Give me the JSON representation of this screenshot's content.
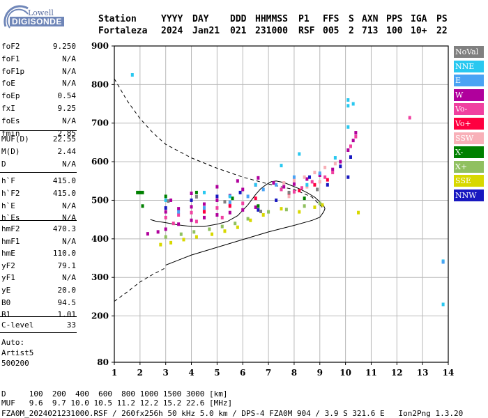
{
  "logo": {
    "line1": "Lowell",
    "line2": "DIGISONDE"
  },
  "header": {
    "row1": [
      "Station",
      "YYYY",
      "DAY",
      "DDD",
      "HHMMSS",
      "P1",
      "FFS",
      "S",
      "AXN",
      "PPS",
      "IGA",
      "PS"
    ],
    "row2": [
      "Fortaleza",
      "2024",
      "Jan21",
      "021",
      "231000",
      "RSF",
      "005",
      "2",
      "713",
      "100",
      "10+",
      "22"
    ]
  },
  "params": {
    "group1": [
      {
        "name": "foF2",
        "value": "9.250"
      },
      {
        "name": "foF1",
        "value": "N/A"
      },
      {
        "name": "foF1p",
        "value": "N/A"
      },
      {
        "name": "foE",
        "value": "N/A"
      },
      {
        "name": "foEp",
        "value": "0.54"
      },
      {
        "name": "fxI",
        "value": "9.25"
      },
      {
        "name": "foEs",
        "value": "N/A"
      },
      {
        "name": "fmin",
        "value": "2.85"
      }
    ],
    "group2": [
      {
        "name": "MUF(D)",
        "value": "22.55"
      },
      {
        "name": "M(D)",
        "value": "2.44"
      },
      {
        "name": "D",
        "value": "N/A"
      }
    ],
    "group3": [
      {
        "name": "h`F",
        "value": "415.0"
      },
      {
        "name": "h`F2",
        "value": "415.0"
      },
      {
        "name": "h`E",
        "value": "N/A"
      },
      {
        "name": "h`Es",
        "value": "N/A"
      }
    ],
    "group4": [
      {
        "name": "hmF2",
        "value": "470.3"
      },
      {
        "name": "hmF1",
        "value": "N/A"
      },
      {
        "name": "hmE",
        "value": "110.0"
      },
      {
        "name": "yF2",
        "value": "79.1"
      },
      {
        "name": "yF1",
        "value": "N/A"
      },
      {
        "name": "yE",
        "value": "20.0"
      },
      {
        "name": "B0",
        "value": "94.5"
      },
      {
        "name": "B1",
        "value": "1.01"
      }
    ],
    "group5": [
      {
        "name": "C-level",
        "value": "33"
      }
    ]
  },
  "autoscale": {
    "line1": "Auto:",
    "line2": "Artist5",
    "line3": "500200"
  },
  "legend": [
    {
      "label": "NoVal",
      "color": "#808080"
    },
    {
      "label": "NNE",
      "color": "#29c8f0"
    },
    {
      "label": "E",
      "color": "#4aa3f4"
    },
    {
      "label": "W",
      "color": "#b0009c"
    },
    {
      "label": "Vo-",
      "color": "#f040a0"
    },
    {
      "label": "Vo+",
      "color": "#ff0040"
    },
    {
      "label": "SSW",
      "color": "#f8b0b8"
    },
    {
      "label": "X-",
      "color": "#008000"
    },
    {
      "label": "X+",
      "color": "#90c060"
    },
    {
      "label": "SSE",
      "color": "#d8d800"
    },
    {
      "label": "NNW",
      "color": "#1818c0"
    }
  ],
  "footer": {
    "d_label": "D",
    "d_values": [
      "100",
      "200",
      "400",
      "600",
      "800",
      "1000",
      "1500",
      "3000"
    ],
    "d_unit": "[km]",
    "muf_label": "MUF",
    "muf_values": [
      "9.6",
      "9.7",
      "10.0",
      "10.5",
      "11.2",
      "12.2",
      "15.2",
      "22.6"
    ],
    "muf_unit": "[MHz]",
    "info": "FZA0M_2024021231000.RSF / 260fx256h 50 kHz 5.0 km / DPS-4 FZA0M 904 / 3.9 S 321.6 E   Ion2Png 1.3.20"
  },
  "chart_data": {
    "type": "scatter",
    "xlim": [
      1,
      14
    ],
    "ylim": [
      80,
      900
    ],
    "x_ticks": [
      1,
      2,
      3,
      4,
      5,
      6,
      7,
      8,
      9,
      10,
      11,
      12,
      13,
      14
    ],
    "y_ticks": [
      80,
      200,
      300,
      400,
      500,
      600,
      700,
      800,
      900
    ],
    "grid": true,
    "series": [
      {
        "name": "W",
        "color": "#b0009c",
        "points": [
          [
            2.3,
            413
          ],
          [
            2.7,
            418
          ],
          [
            3.0,
            425
          ],
          [
            3.5,
            438
          ],
          [
            4.0,
            448
          ],
          [
            4.5,
            455
          ],
          [
            5.0,
            462
          ],
          [
            5.5,
            468
          ],
          [
            6.0,
            475
          ],
          [
            6.5,
            482
          ],
          [
            3.0,
            470
          ],
          [
            3.5,
            478
          ],
          [
            4.0,
            483
          ],
          [
            4.5,
            490
          ],
          [
            5.0,
            500
          ],
          [
            5.5,
            512
          ],
          [
            6.0,
            528
          ],
          [
            6.5,
            540
          ],
          [
            3.2,
            500
          ],
          [
            4.0,
            518
          ],
          [
            5.0,
            535
          ],
          [
            5.8,
            550
          ],
          [
            6.6,
            558
          ],
          [
            7.2,
            545
          ],
          [
            7.6,
            535
          ],
          [
            8.0,
            542
          ],
          [
            8.5,
            555
          ],
          [
            9.0,
            565
          ],
          [
            9.5,
            580
          ],
          [
            9.8,
            600
          ],
          [
            10.1,
            630
          ],
          [
            10.3,
            655
          ],
          [
            10.4,
            675
          ]
        ]
      },
      {
        "name": "Vo-",
        "color": "#f040a0",
        "points": [
          [
            3.0,
            455
          ],
          [
            3.5,
            462
          ],
          [
            4.0,
            468
          ],
          [
            4.5,
            472
          ],
          [
            5.0,
            480
          ],
          [
            5.5,
            488
          ],
          [
            6.0,
            492
          ],
          [
            3.3,
            440
          ],
          [
            4.2,
            445
          ],
          [
            5.2,
            455
          ],
          [
            7.5,
            528
          ],
          [
            8.0,
            522
          ],
          [
            8.3,
            532
          ],
          [
            8.7,
            548
          ],
          [
            9.2,
            560
          ],
          [
            9.5,
            572
          ],
          [
            10.2,
            640
          ],
          [
            10.4,
            665
          ],
          [
            12.5,
            714
          ]
        ]
      },
      {
        "name": "Vo+",
        "color": "#ff0040",
        "points": [
          [
            4.5,
            470
          ],
          [
            5.5,
            485
          ],
          [
            6.5,
            505
          ],
          [
            7.8,
            518
          ],
          [
            8.2,
            525
          ],
          [
            8.8,
            540
          ],
          [
            9.3,
            553
          ]
        ]
      },
      {
        "name": "SSW",
        "color": "#f8b0b8",
        "points": [
          [
            7.6,
            545
          ],
          [
            8.0,
            552
          ],
          [
            8.4,
            560
          ],
          [
            8.8,
            572
          ],
          [
            9.2,
            585
          ],
          [
            9.6,
            595
          ],
          [
            7.8,
            510
          ],
          [
            8.5,
            535
          ],
          [
            9.0,
            548
          ]
        ]
      },
      {
        "name": "SSE",
        "color": "#d8d800",
        "points": [
          [
            2.8,
            385
          ],
          [
            3.2,
            390
          ],
          [
            3.7,
            398
          ],
          [
            4.2,
            405
          ],
          [
            4.8,
            412
          ],
          [
            5.3,
            420
          ],
          [
            5.8,
            430
          ],
          [
            6.3,
            448
          ],
          [
            6.8,
            462
          ],
          [
            7.5,
            478
          ],
          [
            8.2,
            470
          ],
          [
            8.8,
            482
          ],
          [
            9.1,
            488
          ],
          [
            10.5,
            468
          ]
        ]
      },
      {
        "name": "X+",
        "color": "#90c060",
        "points": [
          [
            3.0,
            405
          ],
          [
            3.6,
            412
          ],
          [
            4.1,
            418
          ],
          [
            4.7,
            425
          ],
          [
            5.2,
            432
          ],
          [
            5.7,
            440
          ],
          [
            6.2,
            452
          ],
          [
            7.0,
            470
          ],
          [
            7.7,
            476
          ],
          [
            8.4,
            485
          ],
          [
            9.0,
            492
          ]
        ]
      },
      {
        "name": "X-",
        "color": "#008000",
        "points": [
          [
            2.1,
            485
          ],
          [
            3.0,
            510
          ],
          [
            4.2,
            520
          ],
          [
            5.6,
            505
          ],
          [
            6.6,
            485
          ],
          [
            8.4,
            505
          ],
          [
            1.9,
            520
          ],
          [
            2.0,
            520
          ],
          [
            2.1,
            520
          ]
        ]
      },
      {
        "name": "NNE",
        "color": "#29c8f0",
        "points": [
          [
            1.7,
            825
          ],
          [
            3.0,
            500
          ],
          [
            4.5,
            520
          ],
          [
            5.5,
            510
          ],
          [
            6.5,
            540
          ],
          [
            7.5,
            590
          ],
          [
            8.2,
            620
          ],
          [
            8.5,
            540
          ],
          [
            9.6,
            610
          ],
          [
            10.1,
            690
          ],
          [
            10.1,
            745
          ],
          [
            10.1,
            760
          ],
          [
            10.3,
            750
          ],
          [
            13.8,
            230
          ],
          [
            13.8,
            342
          ]
        ]
      },
      {
        "name": "E",
        "color": "#4aa3f4",
        "points": [
          [
            3.5,
            470
          ],
          [
            4.5,
            480
          ],
          [
            5.5,
            495
          ],
          [
            6.2,
            510
          ],
          [
            6.8,
            528
          ],
          [
            7.3,
            540
          ],
          [
            8.0,
            560
          ],
          [
            9.0,
            570
          ],
          [
            13.8,
            340
          ]
        ]
      },
      {
        "name": "NNW",
        "color": "#1818c0",
        "points": [
          [
            3.0,
            480
          ],
          [
            4.0,
            500
          ],
          [
            5.0,
            510
          ],
          [
            5.9,
            520
          ],
          [
            6.6,
            475
          ],
          [
            7.3,
            500
          ],
          [
            8.6,
            560
          ],
          [
            9.3,
            540
          ],
          [
            9.8,
            588
          ],
          [
            10.2,
            612
          ],
          [
            10.1,
            560
          ]
        ]
      },
      {
        "name": "NoVal",
        "color": "#808080",
        "points": [
          [
            3.1,
            498
          ],
          [
            4.2,
            509
          ],
          [
            5.3,
            496
          ],
          [
            6.7,
            471
          ],
          [
            7.8,
            520
          ],
          [
            8.9,
            528
          ]
        ]
      }
    ],
    "traces": [
      {
        "name": "dashed-upper",
        "style": "dashed",
        "points": [
          [
            1.0,
            815
          ],
          [
            1.5,
            758
          ],
          [
            2.0,
            712
          ],
          [
            2.5,
            675
          ],
          [
            3.0,
            645
          ],
          [
            4.0,
            610
          ],
          [
            5.0,
            583
          ],
          [
            6.0,
            560
          ],
          [
            7.0,
            542
          ],
          [
            8.0,
            528
          ],
          [
            8.7,
            508
          ],
          [
            9.15,
            478
          ]
        ]
      },
      {
        "name": "dashed-lower",
        "style": "dashed",
        "points": [
          [
            1.0,
            238
          ],
          [
            1.5,
            262
          ],
          [
            2.0,
            288
          ],
          [
            2.5,
            308
          ],
          [
            3.0,
            325
          ]
        ]
      },
      {
        "name": "solid-lower",
        "style": "solid",
        "points": [
          [
            3.0,
            332
          ],
          [
            4.0,
            358
          ],
          [
            5.0,
            378
          ],
          [
            6.0,
            398
          ],
          [
            7.0,
            418
          ],
          [
            8.0,
            435
          ],
          [
            8.7,
            448
          ],
          [
            9.0,
            456
          ],
          [
            9.15,
            470
          ],
          [
            9.2,
            478
          ],
          [
            9.15,
            486
          ],
          [
            9.0,
            496
          ],
          [
            8.8,
            508
          ],
          [
            8.5,
            520
          ],
          [
            8.2,
            530
          ],
          [
            7.9,
            538
          ],
          [
            7.6,
            546
          ],
          [
            7.3,
            550
          ],
          [
            7.1,
            548
          ],
          [
            6.9,
            540
          ],
          [
            6.7,
            530
          ],
          [
            6.5,
            515
          ],
          [
            6.2,
            488
          ],
          [
            5.8,
            460
          ],
          [
            5.4,
            445
          ],
          [
            5.0,
            438
          ],
          [
            4.5,
            432
          ],
          [
            4.0,
            432
          ],
          [
            3.5,
            436
          ],
          [
            3.0,
            442
          ],
          [
            2.6,
            446
          ],
          [
            2.4,
            450
          ]
        ]
      }
    ]
  }
}
